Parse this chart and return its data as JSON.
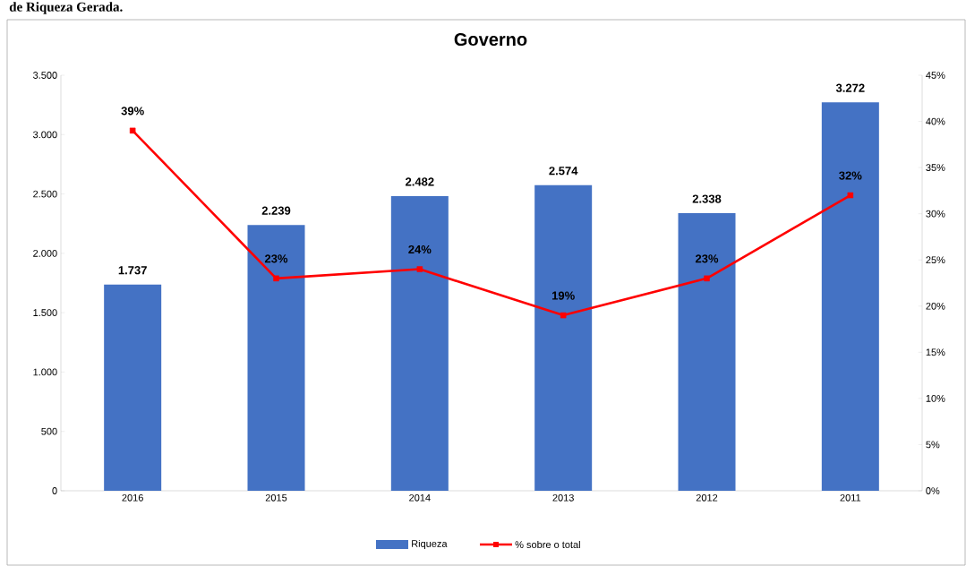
{
  "chart_data": {
    "type": "bar",
    "title": "Governo",
    "annotations": [
      "de Riqueza Gerada."
    ],
    "categories": [
      "2016",
      "2015",
      "2014",
      "2013",
      "2012",
      "2011"
    ],
    "series": [
      {
        "name": "Riqueza",
        "color": "#4472c4",
        "values": [
          1737,
          2239,
          2482,
          2574,
          2338,
          3272
        ],
        "value_labels": [
          "1.737",
          "2.239",
          "2.482",
          "2.574",
          "2.338",
          "3.272"
        ]
      },
      {
        "name": "% sobre o total",
        "type": "line",
        "axis": "y2",
        "color": "#ff0000",
        "marker": "square",
        "values": [
          39,
          23,
          24,
          19,
          23,
          32
        ],
        "value_labels": [
          "39%",
          "23%",
          "24%",
          "19%",
          "23%",
          "32%"
        ]
      }
    ],
    "ylim": [
      0,
      3500
    ],
    "yticks": [
      {
        "value": 0,
        "label": "0"
      },
      {
        "value": 500,
        "label": "500"
      },
      {
        "value": 1000,
        "label": "1.000"
      },
      {
        "value": 1500,
        "label": "1.500"
      },
      {
        "value": 2000,
        "label": "2.000"
      },
      {
        "value": 2500,
        "label": "2.500"
      },
      {
        "value": 3000,
        "label": "3.000"
      },
      {
        "value": 3500,
        "label": "3.500"
      }
    ],
    "y2lim": [
      0,
      45
    ],
    "y2ticks": [
      {
        "value": 0,
        "label": "0%"
      },
      {
        "value": 5,
        "label": "5%"
      },
      {
        "value": 10,
        "label": "10%"
      },
      {
        "value": 15,
        "label": "15%"
      },
      {
        "value": 20,
        "label": "20%"
      },
      {
        "value": 25,
        "label": "25%"
      },
      {
        "value": 30,
        "label": "30%"
      },
      {
        "value": 35,
        "label": "35%"
      },
      {
        "value": 40,
        "label": "40%"
      },
      {
        "value": 45,
        "label": "45%"
      }
    ],
    "legend": "bottom"
  }
}
